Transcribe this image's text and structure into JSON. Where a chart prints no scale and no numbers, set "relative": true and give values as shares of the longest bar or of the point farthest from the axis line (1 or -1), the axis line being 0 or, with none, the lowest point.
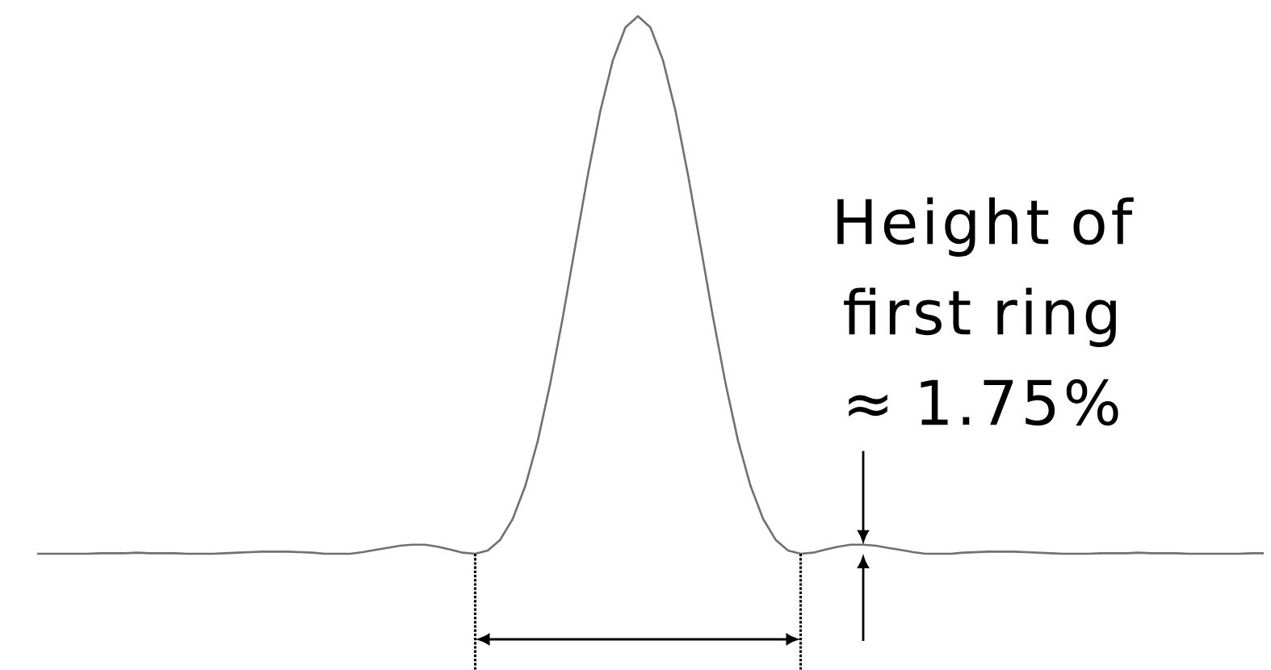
{
  "chart_data": {
    "type": "line",
    "relative": true,
    "categories": [
      null,
      null,
      null,
      null,
      null,
      null,
      null,
      null,
      null,
      null,
      null,
      null,
      null,
      null,
      null,
      null,
      null,
      null,
      null,
      null,
      null,
      null,
      null,
      null,
      null,
      null,
      null,
      null,
      null,
      null,
      null,
      null,
      null,
      null,
      null,
      null,
      null,
      null,
      null,
      null,
      null,
      null,
      null,
      null,
      null,
      null,
      null,
      null,
      null,
      null,
      null,
      null,
      null,
      null,
      null,
      null,
      null,
      null,
      null,
      null,
      null,
      null,
      null,
      null,
      null,
      null,
      null,
      null,
      null,
      null,
      null,
      null,
      null,
      null,
      null,
      null,
      null,
      null,
      null,
      null,
      null,
      null,
      null,
      null,
      null,
      null,
      null,
      null,
      null,
      null,
      null,
      null,
      null,
      null,
      null,
      null,
      null,
      null,
      null
    ],
    "values": [
      0,
      0,
      0,
      0,
      0,
      0.001,
      0.001,
      0.001,
      0.002,
      0.001,
      0.001,
      0.001,
      0,
      0,
      0,
      0.001,
      0.002,
      0.003,
      0.004,
      0.004,
      0.004,
      0.003,
      0.002,
      0,
      0,
      0,
      0.003,
      0.007,
      0.011,
      0.015,
      0.017,
      0.017,
      0.013,
      0.008,
      0.002,
      0,
      0.006,
      0.026,
      0.065,
      0.126,
      0.21,
      0.317,
      0.44,
      0.573,
      0.705,
      0.824,
      0.918,
      0.979,
      1,
      0.979,
      0.918,
      0.824,
      0.705,
      0.573,
      0.44,
      0.317,
      0.21,
      0.126,
      0.065,
      0.026,
      0.006,
      0,
      0.002,
      0.008,
      0.013,
      0.017,
      0.017,
      0.015,
      0.011,
      0.007,
      0.003,
      0,
      0,
      0,
      0.002,
      0.003,
      0.004,
      0.004,
      0.004,
      0.003,
      0.002,
      0.001,
      0,
      0,
      0,
      0.001,
      0.001,
      0.001,
      0.002,
      0.001,
      0.001,
      0.001,
      0,
      0,
      0,
      0,
      0,
      0.001,
      0.001
    ],
    "color": "#707070",
    "annotations": [
      "Height of first ring ≈ 1.75%"
    ]
  }
}
